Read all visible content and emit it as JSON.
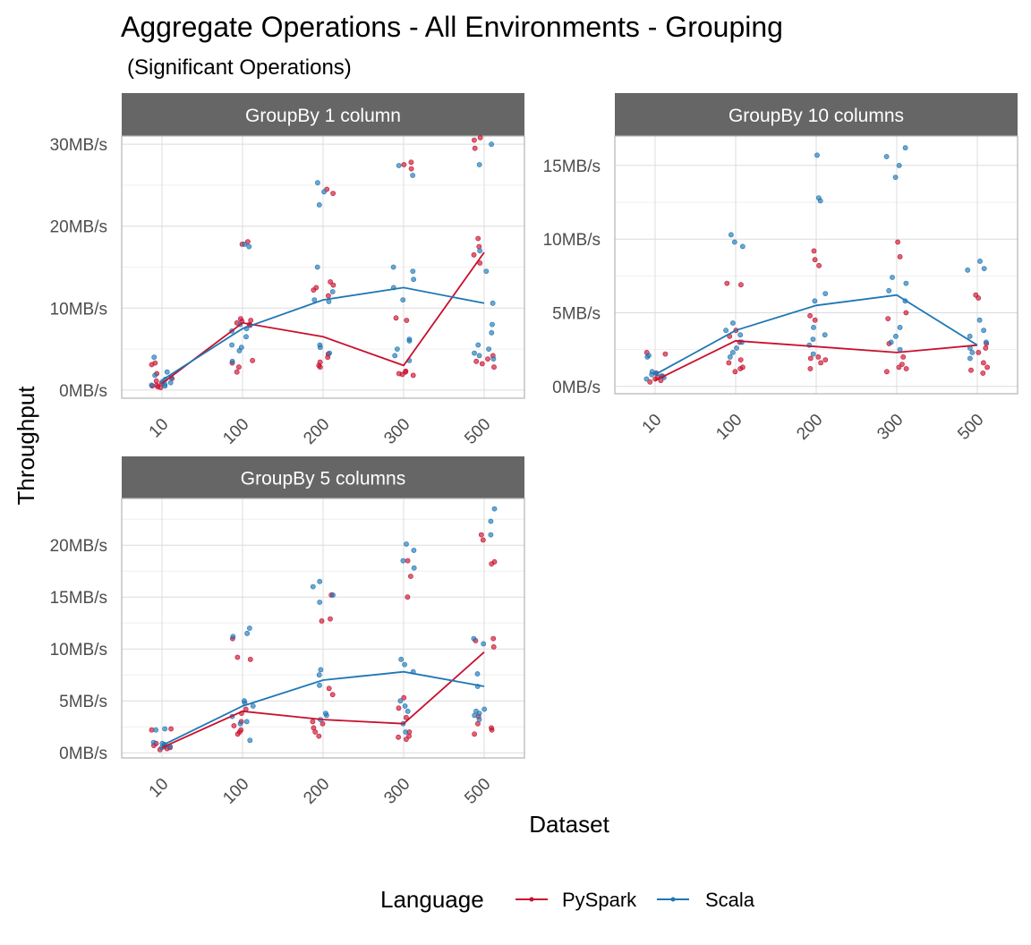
{
  "title": "Aggregate Operations - All Environments - Grouping",
  "subtitle": "(Significant Operations)",
  "colors": {
    "PySpark": "#c8102e",
    "Scala": "#1f77b4",
    "strip_bg": "#666666",
    "strip_text": "#ffffff"
  },
  "chart_data": {
    "type": "line",
    "title": "Aggregate Operations - All Environments - Grouping",
    "subtitle": "(Significant Operations)",
    "xlabel": "Dataset",
    "ylabel": "Throughput",
    "categories": [
      "10",
      "100",
      "200",
      "300",
      "500"
    ],
    "legend": {
      "title": "Language",
      "position": "bottom",
      "entries": [
        "PySpark",
        "Scala"
      ]
    },
    "grid": true,
    "panels": [
      {
        "title": "GroupBy 1 column",
        "ylim": [
          -1,
          31
        ],
        "yticks": [
          0,
          10,
          20,
          30
        ],
        "ytick_labels": [
          "0MB/s",
          "10MB/s",
          "20MB/s",
          "30MB/s"
        ],
        "series": [
          {
            "name": "PySpark",
            "values": [
              0.8,
              8.2,
              6.5,
              3.0,
              16.8
            ],
            "points": [
              [
                0.3,
                0.8,
                1.1,
                3.1,
                3.3,
                0.5,
                1.4,
                0.6,
                2.0,
                0.4
              ],
              [
                2.2,
                2.8,
                3.3,
                3.6,
                8.0,
                8.2,
                8.5,
                8.7,
                17.8,
                18.1,
                7.9,
                8.4
              ],
              [
                2.8,
                3.4,
                4.0,
                4.4,
                11.5,
                12.2,
                12.8,
                13.2,
                24.0,
                24.5,
                3.0,
                12.5
              ],
              [
                1.8,
                2.0,
                2.3,
                8.5,
                8.8,
                27.0,
                27.5,
                27.8,
                2.2,
                1.9
              ],
              [
                2.8,
                3.2,
                3.8,
                4.2,
                15.5,
                16.5,
                17.5,
                18.5,
                29.5,
                30.5,
                30.8,
                3.5
              ]
            ]
          },
          {
            "name": "Scala",
            "values": [
              1.2,
              7.5,
              11.0,
              12.5,
              10.6
            ],
            "points": [
              [
                0.5,
                0.9,
                1.3,
                1.8,
                2.2,
                0.7,
                4.0,
                1.0,
                0.6,
                1.5
              ],
              [
                3.5,
                4.8,
                5.5,
                6.5,
                7.2,
                7.5,
                8.0,
                17.5,
                17.8,
                5.2
              ],
              [
                4.5,
                5.2,
                5.5,
                11.0,
                12.0,
                15.0,
                22.6,
                24.2,
                25.3,
                10.8
              ],
              [
                3.6,
                4.2,
                5.0,
                6.0,
                11.0,
                13.5,
                14.5,
                15.0,
                26.2,
                27.4,
                6.2,
                12.5
              ],
              [
                3.8,
                4.5,
                5.0,
                5.5,
                7.0,
                8.0,
                14.5,
                17.0,
                27.5,
                30.0,
                4.2,
                10.6
              ]
            ]
          }
        ]
      },
      {
        "title": "GroupBy 10 columns",
        "ylim": [
          -0.5,
          17
        ],
        "yticks": [
          0,
          5,
          10,
          15
        ],
        "ytick_labels": [
          "0MB/s",
          "5MB/s",
          "10MB/s",
          "15MB/s"
        ],
        "series": [
          {
            "name": "PySpark",
            "values": [
              0.4,
              3.1,
              2.7,
              2.3,
              2.8
            ],
            "points": [
              [
                0.3,
                0.6,
                0.9,
                2.2,
                0.4,
                0.7,
                2.3,
                0.5
              ],
              [
                1.0,
                1.3,
                1.6,
                1.8,
                3.0,
                3.4,
                3.8,
                6.9,
                7.0,
                1.2
              ],
              [
                1.2,
                1.6,
                1.8,
                2.0,
                4.5,
                4.8,
                8.2,
                8.6,
                9.2,
                1.9
              ],
              [
                1.0,
                1.3,
                1.5,
                2.0,
                4.6,
                5.0,
                8.8,
                9.8,
                1.2,
                2.9
              ],
              [
                0.9,
                1.3,
                1.6,
                2.6,
                2.9,
                6.0,
                6.2,
                1.1,
                2.3
              ]
            ]
          },
          {
            "name": "Scala",
            "values": [
              0.8,
              3.8,
              5.5,
              6.2,
              2.8
            ],
            "points": [
              [
                0.5,
                0.8,
                1.0,
                2.1,
                0.6,
                0.9,
                2.0,
                0.7
              ],
              [
                2.0,
                2.6,
                3.0,
                3.8,
                4.3,
                9.5,
                9.8,
                10.3,
                2.3,
                3.5
              ],
              [
                2.2,
                2.8,
                3.5,
                4.0,
                5.8,
                6.3,
                12.6,
                12.8,
                15.7,
                3.2
              ],
              [
                2.5,
                3.0,
                4.0,
                6.5,
                7.0,
                7.4,
                14.2,
                15.0,
                15.6,
                16.2,
                3.4,
                5.8
              ],
              [
                1.9,
                2.3,
                3.0,
                3.8,
                4.5,
                7.9,
                8.0,
                8.5,
                2.6,
                3.4
              ]
            ]
          }
        ]
      },
      {
        "title": "GroupBy 5 columns",
        "ylim": [
          -0.5,
          24.5
        ],
        "yticks": [
          0,
          5,
          10,
          15,
          20
        ],
        "ytick_labels": [
          "0MB/s",
          "5MB/s",
          "10MB/s",
          "15MB/s",
          "20MB/s"
        ],
        "series": [
          {
            "name": "PySpark",
            "values": [
              0.5,
              4.0,
              3.2,
              2.8,
              9.7
            ],
            "points": [
              [
                0.3,
                0.6,
                0.9,
                2.2,
                0.4,
                0.7,
                2.3,
                0.5
              ],
              [
                1.8,
                2.2,
                2.6,
                3.8,
                4.2,
                9.0,
                9.2,
                11.0,
                2.0,
                3.0
              ],
              [
                1.6,
                2.0,
                2.4,
                3.0,
                5.6,
                6.2,
                12.7,
                12.9,
                15.2,
                2.8
              ],
              [
                1.3,
                1.6,
                2.0,
                3.4,
                4.3,
                15.0,
                17.0,
                18.5,
                1.5,
                5.3
              ],
              [
                1.8,
                2.2,
                2.8,
                3.5,
                10.8,
                11.0,
                18.2,
                18.4,
                20.5,
                21.0,
                2.4,
                10.2
              ]
            ]
          },
          {
            "name": "Scala",
            "values": [
              0.7,
              4.5,
              7.0,
              7.8,
              6.4
            ],
            "points": [
              [
                0.5,
                0.8,
                1.0,
                2.3,
                0.6,
                0.9,
                2.2,
                0.7
              ],
              [
                1.2,
                2.8,
                3.5,
                4.5,
                5.0,
                11.2,
                11.5,
                12.0,
                3.0,
                4.8
              ],
              [
                3.2,
                3.8,
                6.5,
                7.5,
                8.0,
                14.5,
                15.2,
                16.0,
                16.5,
                3.6
              ],
              [
                2.0,
                2.8,
                4.0,
                5.0,
                8.5,
                9.0,
                17.8,
                18.5,
                19.5,
                20.1,
                4.5,
                7.8
              ],
              [
                3.2,
                3.6,
                4.0,
                4.2,
                6.4,
                7.6,
                10.5,
                11.0,
                21.0,
                22.3,
                23.5,
                3.8
              ]
            ]
          }
        ]
      }
    ]
  }
}
